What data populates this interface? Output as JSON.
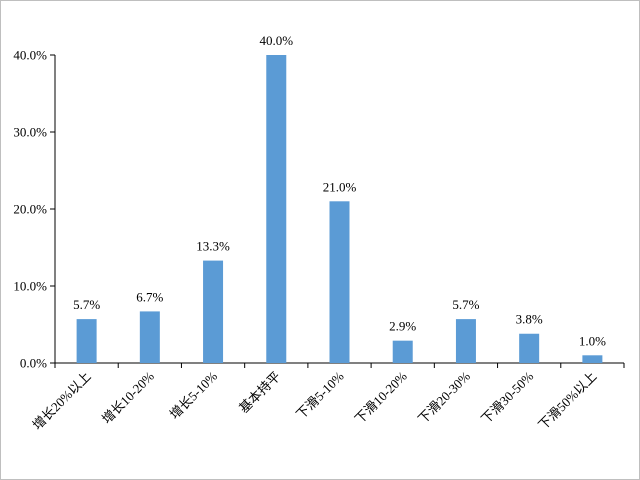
{
  "chart_data": {
    "type": "bar",
    "categories": [
      "增长20%以上",
      "增长10-20%",
      "增长5-10%",
      "基本持平",
      "下滑5-10%",
      "下滑10-20%",
      "下滑20-30%",
      "下滑30-50%",
      "下滑50%以上"
    ],
    "values": [
      5.7,
      6.7,
      13.3,
      40.0,
      21.0,
      2.9,
      5.7,
      3.8,
      1.0
    ],
    "data_labels": [
      "5.7%",
      "6.7%",
      "13.3%",
      "40.0%",
      "21.0%",
      "2.9%",
      "5.7%",
      "3.8%",
      "1.0%"
    ],
    "y_ticks": [
      0,
      10,
      20,
      30,
      40
    ],
    "y_tick_labels": [
      "0.0%",
      "10.0%",
      "20.0%",
      "30.0%",
      "40.0%"
    ],
    "ylim": [
      0,
      40
    ],
    "grid": false,
    "legend": "none",
    "title": "",
    "xlabel": "",
    "ylabel": ""
  },
  "colors": {
    "bar": "#5b9bd5",
    "axis": "#000000"
  }
}
